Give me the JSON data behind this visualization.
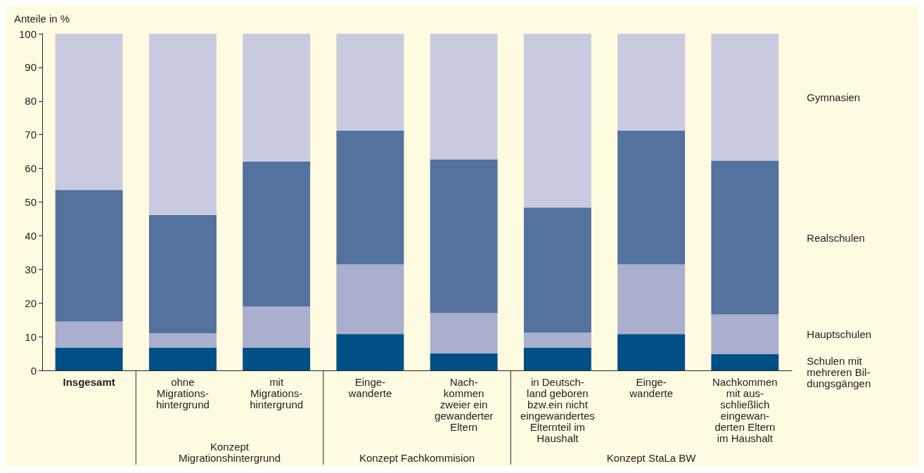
{
  "chart_data": {
    "type": "bar",
    "stacked": true,
    "ylabel": "Anteile in %",
    "categories": [
      "Insgesamt",
      "ohne\nMigrations-\nhintergrund",
      "mit\nMigrations-\nhintergrund",
      "Einge-\nwanderte",
      "Nach-\nkommen\nzweier ein\ngewanderter\nEltern",
      "in Deutsch-\nland geboren\nbzw.ein nicht\neingewandertes\nElternteil im\nHaushalt",
      "Einge-\nwanderte",
      "Nachkommen\nmit aus-\nschließlich\neingewan-\nderten Eltern\nim Haushalt"
    ],
    "series": [
      {
        "name": "Schulen mit\nmehreren Bil-\ndungsgängen",
        "color": "#005087",
        "values": [
          6.8,
          6.8,
          6.8,
          10.8,
          5,
          6.8,
          10.8,
          4.8
        ]
      },
      {
        "name": "Hauptschulen",
        "color": "#a9afcc",
        "values": [
          7.7,
          4.2,
          12.2,
          20.7,
          12,
          4.4,
          20.7,
          11.8
        ]
      },
      {
        "name": "Realschulen",
        "color": "#53729e",
        "values": [
          39.1,
          35.2,
          43,
          39.7,
          45.7,
          37.2,
          39.7,
          45.7
        ]
      },
      {
        "name": "Gymnasien",
        "color": "#c8cbe0",
        "values": [
          46.4,
          53.8,
          38,
          28.8,
          37.3,
          51.6,
          28.8,
          37.7
        ]
      }
    ],
    "ylim": [
      0,
      100
    ],
    "yticks": [
      0,
      10,
      20,
      30,
      40,
      50,
      60,
      70,
      80,
      90,
      100
    ],
    "grid": false,
    "legend": "right",
    "annotations": [
      "Konzept\nMigrationshintergrund",
      "Konzept Fachkommision",
      "Konzept StaLa BW"
    ]
  }
}
